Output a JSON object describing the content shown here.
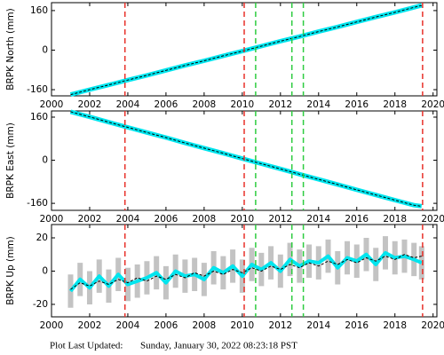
{
  "chart_data": [
    {
      "type": "line",
      "ylabel": "BRPK North (mm)",
      "x": [
        2001,
        2002,
        2003,
        2004,
        2005,
        2006,
        2007,
        2008,
        2009,
        2010,
        2011,
        2012,
        2013,
        2014,
        2015,
        2016,
        2017,
        2018,
        2019,
        2019.4
      ],
      "series": [
        {
          "color": "#00e5ee",
          "values": [
            -180,
            -160,
            -141,
            -121,
            -102,
            -82,
            -62,
            -43,
            -23,
            -4,
            16,
            36,
            55,
            75,
            94,
            114,
            134,
            153,
            173,
            181
          ]
        },
        {
          "color": "#000000",
          "values": [
            -180,
            -160,
            -141,
            -121,
            -102,
            -82,
            -62,
            -43,
            -23,
            -4,
            16,
            36,
            55,
            75,
            94,
            114,
            134,
            153,
            173,
            181
          ]
        }
      ],
      "xlim": [
        2000,
        2020.2
      ],
      "ylim": [
        -185,
        192
      ],
      "xticks": [
        2000,
        2002,
        2004,
        2006,
        2008,
        2010,
        2012,
        2014,
        2016,
        2018,
        2020
      ],
      "yticks": [
        -160,
        0,
        160
      ],
      "vlines": [
        {
          "x": 2003.85,
          "color": "#e8312a"
        },
        {
          "x": 2010.1,
          "color": "#e8312a"
        },
        {
          "x": 2010.7,
          "color": "#2ecc40"
        },
        {
          "x": 2012.6,
          "color": "#2ecc40"
        },
        {
          "x": 2013.2,
          "color": "#2ecc40"
        },
        {
          "x": 2019.45,
          "color": "#e8312a"
        }
      ]
    },
    {
      "type": "line",
      "ylabel": "BRPK East (mm)",
      "x": [
        2001,
        2002,
        2003,
        2004,
        2005,
        2006,
        2007,
        2008,
        2009,
        2010,
        2011,
        2012,
        2013,
        2014,
        2015,
        2016,
        2017,
        2018,
        2019,
        2019.4
      ],
      "series": [
        {
          "color": "#00e5ee",
          "values": [
            180,
            161,
            141,
            122,
            103,
            84,
            64,
            45,
            26,
            6,
            -13,
            -32,
            -52,
            -71,
            -90,
            -110,
            -129,
            -148,
            -167,
            -171
          ]
        },
        {
          "color": "#000000",
          "values": [
            180,
            161,
            141,
            122,
            103,
            84,
            64,
            45,
            26,
            6,
            -13,
            -32,
            -52,
            -71,
            -90,
            -110,
            -129,
            -148,
            -167,
            -171
          ]
        }
      ],
      "xlim": [
        2000,
        2020.2
      ],
      "ylim": [
        -186,
        183
      ],
      "xticks": [
        2000,
        2002,
        2004,
        2006,
        2008,
        2010,
        2012,
        2014,
        2016,
        2018,
        2020
      ],
      "yticks": [
        -160,
        0,
        160
      ],
      "vlines": [
        {
          "x": 2003.85,
          "color": "#e8312a"
        },
        {
          "x": 2010.1,
          "color": "#e8312a"
        },
        {
          "x": 2010.7,
          "color": "#2ecc40"
        },
        {
          "x": 2012.6,
          "color": "#2ecc40"
        },
        {
          "x": 2013.2,
          "color": "#2ecc40"
        },
        {
          "x": 2019.45,
          "color": "#e8312a"
        }
      ]
    },
    {
      "type": "line",
      "ylabel": "BRPK Up (mm)",
      "x": [
        2001,
        2001.5,
        2002,
        2002.5,
        2003,
        2003.5,
        2004,
        2004.5,
        2005,
        2005.5,
        2006,
        2006.5,
        2007,
        2007.5,
        2008,
        2008.5,
        2009,
        2009.5,
        2010,
        2010.5,
        2011,
        2011.5,
        2012,
        2012.5,
        2013,
        2013.5,
        2014,
        2014.5,
        2015,
        2015.5,
        2016,
        2016.5,
        2017,
        2017.5,
        2018,
        2018.5,
        2019,
        2019.4
      ],
      "series": [
        {
          "color": "#00e5ee",
          "error_color": "#aaaaaa",
          "values": [
            -12,
            -5,
            -10,
            -3,
            -9,
            -2,
            -8,
            -6,
            -4,
            -1,
            -7,
            0,
            -3,
            -2,
            -5,
            2,
            -1,
            3,
            -3,
            4,
            1,
            5,
            0,
            7,
            3,
            6,
            5,
            9,
            2,
            8,
            6,
            10,
            4,
            11,
            8,
            9,
            7,
            5
          ],
          "errors": [
            10,
            10,
            10,
            10,
            10,
            10,
            10,
            10,
            10,
            10,
            10,
            10,
            10,
            10,
            10,
            10,
            10,
            10,
            10,
            10,
            10,
            10,
            10,
            10,
            10,
            10,
            10,
            10,
            10,
            10,
            10,
            10,
            10,
            10,
            10,
            10,
            10,
            10
          ]
        },
        {
          "color": "#000000",
          "values": [
            -11,
            -7,
            -9,
            -6,
            -8,
            -5,
            -7,
            -4,
            -6,
            -3,
            -5,
            -2,
            -4,
            -1,
            -3,
            0,
            -2,
            1,
            -1,
            2,
            0,
            3,
            1,
            4,
            2,
            5,
            3,
            6,
            4,
            7,
            5,
            8,
            6,
            9,
            7,
            10,
            8,
            9
          ]
        }
      ],
      "xlim": [
        2000,
        2020.2
      ],
      "ylim": [
        -27.5,
        28
      ],
      "xticks": [
        2000,
        2002,
        2004,
        2006,
        2008,
        2010,
        2012,
        2014,
        2016,
        2018,
        2020
      ],
      "yticks": [
        -20,
        0,
        20
      ],
      "vlines": [
        {
          "x": 2003.85,
          "color": "#e8312a"
        },
        {
          "x": 2010.1,
          "color": "#e8312a"
        },
        {
          "x": 2010.7,
          "color": "#2ecc40"
        },
        {
          "x": 2012.6,
          "color": "#2ecc40"
        },
        {
          "x": 2013.2,
          "color": "#2ecc40"
        },
        {
          "x": 2019.45,
          "color": "#e8312a"
        }
      ]
    }
  ],
  "footer": {
    "label": "Plot Last Updated:",
    "timestamp": "Sunday, January 30, 2022 08:23:18 PST"
  }
}
